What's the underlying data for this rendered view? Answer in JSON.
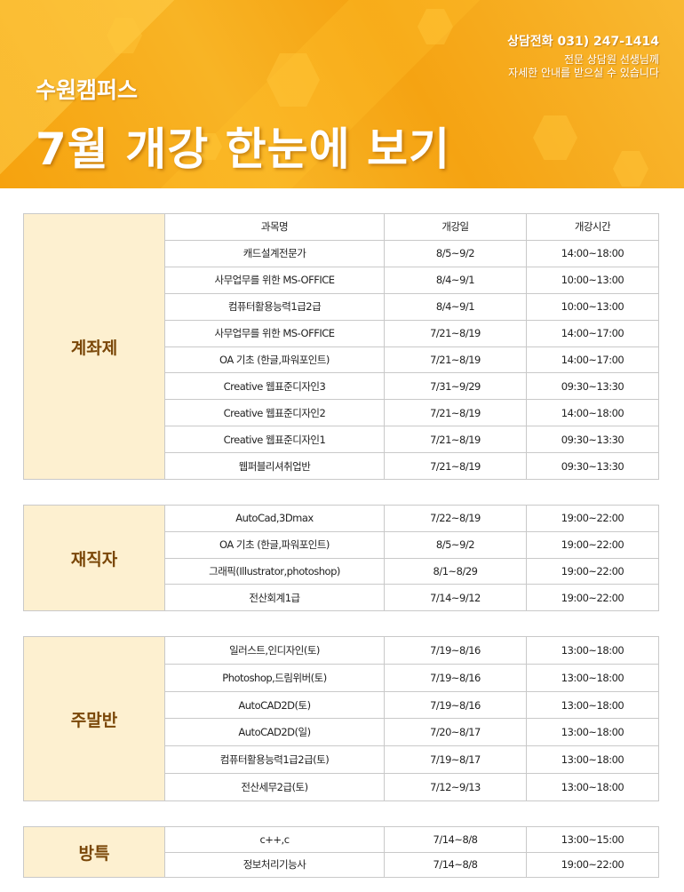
{
  "header": {
    "campus": "수원캠퍼스",
    "title": "7월  개강 한눈에 보기",
    "phone": "상담전화 031) 247-1414",
    "sub_line1": "전문 상담원 선생님께",
    "sub_line2": "자세한 안내를 받으실 수 있습니다"
  },
  "columns": {
    "course": "과목명",
    "date": "개강일",
    "time": "개강시간"
  },
  "sections": [
    {
      "category": "계좌제",
      "rows": [
        [
          "캐드설계전문가",
          "8/5~9/2",
          "14:00~18:00"
        ],
        [
          "사무업무를 위한 MS-OFFICE",
          "8/4~9/1",
          "10:00~13:00"
        ],
        [
          "컴퓨터활용능력1급2급",
          "8/4~9/1",
          "10:00~13:00"
        ],
        [
          "사무업무를 위한 MS-OFFICE",
          "7/21~8/19",
          "14:00~17:00"
        ],
        [
          "OA 기초 (한글,파워포인트)",
          "7/21~8/19",
          "14:00~17:00"
        ],
        [
          "Creative 웹표준디자인3",
          "7/31~9/29",
          "09:30~13:30"
        ],
        [
          "Creative 웹표준디자인2",
          "7/21~8/19",
          "14:00~18:00"
        ],
        [
          "Creative 웹표준디자인1",
          "7/21~8/19",
          "09:30~13:30"
        ],
        [
          "웹퍼블리셔취업반",
          "7/21~8/19",
          "09:30~13:30"
        ]
      ]
    },
    {
      "category": "재직자",
      "rows": [
        [
          "AutoCad,3Dmax",
          "7/22~8/19",
          "19:00~22:00"
        ],
        [
          "OA 기초 (한글,파워포인트)",
          "8/5~9/2",
          "19:00~22:00"
        ],
        [
          "그래픽(Illustrator,photoshop)",
          "8/1~8/29",
          "19:00~22:00"
        ],
        [
          "전산회계1급",
          "7/14~9/12",
          "19:00~22:00"
        ]
      ]
    },
    {
      "category": "주말반",
      "rows": [
        [
          "일러스트,인디자인(토)",
          "7/19~8/16",
          "13:00~18:00"
        ],
        [
          "Photoshop,드림위버(토)",
          "7/19~8/16",
          "13:00~18:00"
        ],
        [
          "AutoCAD2D(토)",
          "7/19~8/16",
          "13:00~18:00"
        ],
        [
          "AutoCAD2D(일)",
          "7/20~8/17",
          "13:00~18:00"
        ],
        [
          "컴퓨터활용능력1급2급(토)",
          "7/19~8/17",
          "13:00~18:00"
        ],
        [
          "전산세무2급(토)",
          "7/12~9/13",
          "13:00~18:00"
        ]
      ]
    },
    {
      "category": "방특",
      "rows": [
        [
          "c++,c",
          "7/14~8/8",
          "13:00~15:00"
        ],
        [
          "정보처리기능사",
          "7/14~8/8",
          "19:00~22:00"
        ]
      ]
    }
  ]
}
